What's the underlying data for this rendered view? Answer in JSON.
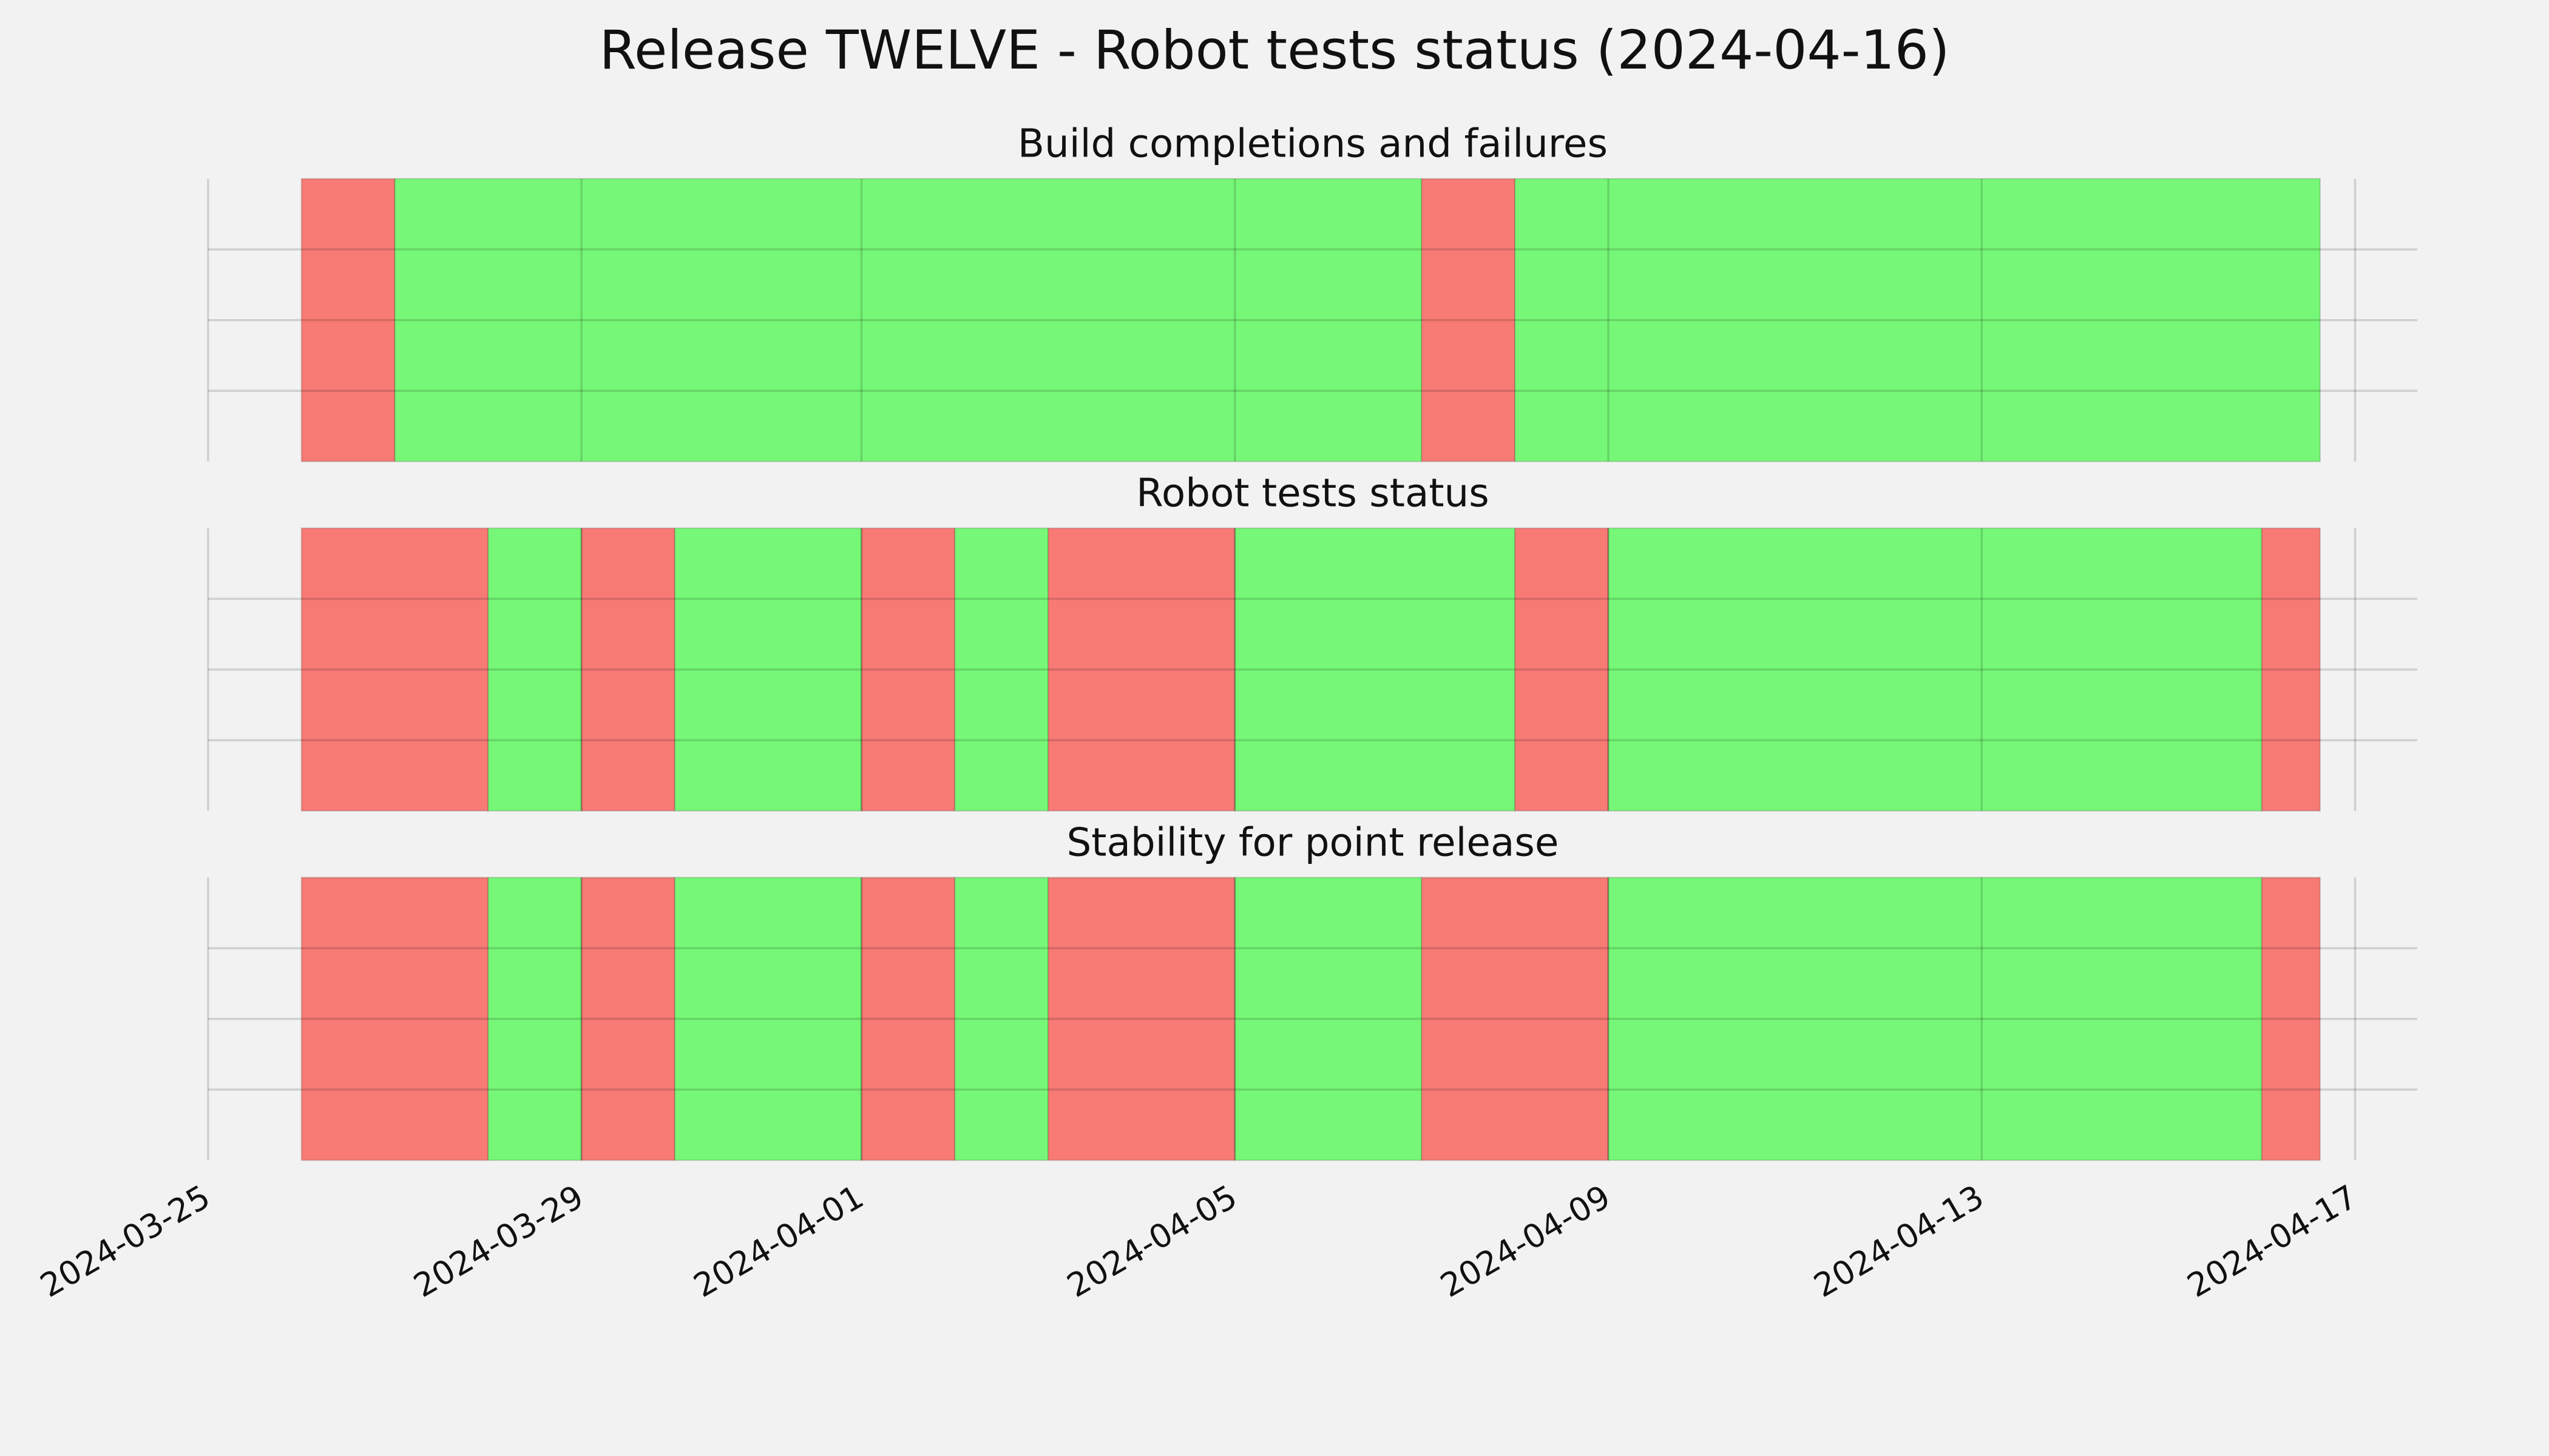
{
  "title": "Release TWELVE - Robot tests status (2024-04-16)",
  "chart_data": [
    {
      "type": "timeline",
      "title": "Build completions and failures",
      "ylim": [
        0,
        1
      ],
      "yticks": [
        0.25,
        0.5,
        0.75
      ],
      "grid": true,
      "spans": [
        {
          "start": "2024-03-26",
          "end": "2024-03-27",
          "color": "#f77a75"
        },
        {
          "start": "2024-03-27",
          "end": "2024-04-07",
          "color": "#76f777"
        },
        {
          "start": "2024-04-07",
          "end": "2024-04-08",
          "color": "#f77a75"
        },
        {
          "start": "2024-04-08",
          "end": "2024-04-16T15:00",
          "color": "#76f777"
        }
      ]
    },
    {
      "type": "timeline",
      "title": "Robot tests status",
      "ylim": [
        0,
        1
      ],
      "yticks": [
        0.25,
        0.5,
        0.75
      ],
      "grid": true,
      "spans": [
        {
          "start": "2024-03-26",
          "end": "2024-03-28",
          "color": "#f77a75"
        },
        {
          "start": "2024-03-28",
          "end": "2024-03-29",
          "color": "#76f777"
        },
        {
          "start": "2024-03-29",
          "end": "2024-03-30",
          "color": "#f77a75"
        },
        {
          "start": "2024-03-30",
          "end": "2024-04-01",
          "color": "#76f777"
        },
        {
          "start": "2024-04-01",
          "end": "2024-04-02",
          "color": "#f77a75"
        },
        {
          "start": "2024-04-02",
          "end": "2024-04-03",
          "color": "#76f777"
        },
        {
          "start": "2024-04-03",
          "end": "2024-04-05",
          "color": "#f77a75"
        },
        {
          "start": "2024-04-05",
          "end": "2024-04-08",
          "color": "#76f777"
        },
        {
          "start": "2024-04-08",
          "end": "2024-04-09",
          "color": "#f77a75"
        },
        {
          "start": "2024-04-09",
          "end": "2024-04-16",
          "color": "#76f777"
        },
        {
          "start": "2024-04-16",
          "end": "2024-04-16T15:00",
          "color": "#f77a75"
        }
      ]
    },
    {
      "type": "timeline",
      "title": "Stability for point release",
      "ylim": [
        0,
        1
      ],
      "yticks": [
        0.25,
        0.5,
        0.75
      ],
      "grid": true,
      "xlim": [
        "2024-03-25",
        "2024-04-17T16:00"
      ],
      "xticks": [
        "2024-03-25",
        "2024-03-29",
        "2024-04-01",
        "2024-04-05",
        "2024-04-09",
        "2024-04-13",
        "2024-04-17"
      ],
      "spans": [
        {
          "start": "2024-03-26",
          "end": "2024-03-28",
          "color": "#f77a75"
        },
        {
          "start": "2024-03-28",
          "end": "2024-03-29",
          "color": "#76f777"
        },
        {
          "start": "2024-03-29",
          "end": "2024-03-30",
          "color": "#f77a75"
        },
        {
          "start": "2024-03-30",
          "end": "2024-04-01",
          "color": "#76f777"
        },
        {
          "start": "2024-04-01",
          "end": "2024-04-02",
          "color": "#f77a75"
        },
        {
          "start": "2024-04-02",
          "end": "2024-04-03",
          "color": "#76f777"
        },
        {
          "start": "2024-04-03",
          "end": "2024-04-05",
          "color": "#f77a75"
        },
        {
          "start": "2024-04-05",
          "end": "2024-04-07",
          "color": "#76f777"
        },
        {
          "start": "2024-04-07",
          "end": "2024-04-09",
          "color": "#f77a75"
        },
        {
          "start": "2024-04-09",
          "end": "2024-04-16",
          "color": "#76f777"
        },
        {
          "start": "2024-04-16",
          "end": "2024-04-16T15:00",
          "color": "#f77a75"
        }
      ]
    }
  ]
}
